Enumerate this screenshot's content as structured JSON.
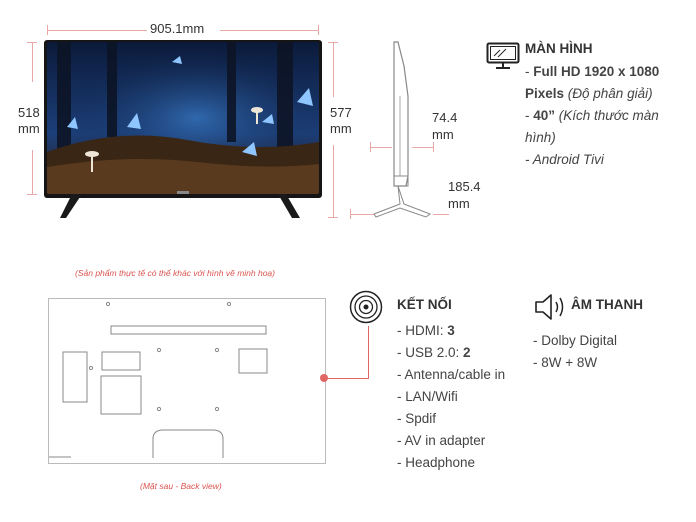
{
  "dimensions": {
    "width": "905.1mm",
    "height_panel_value": "518",
    "height_panel_unit": "mm",
    "height_total_value": "577",
    "height_total_unit": "mm",
    "depth_value": "74.4",
    "depth_unit": "mm",
    "stand_value": "185.4",
    "stand_unit": "mm"
  },
  "display_spec": {
    "title": "MÀN HÌNH",
    "resolution_prefix": "- ",
    "resolution_bold": "Full HD 1920 x 1080",
    "resolution_bold2": "Pixels",
    "resolution_note": " (Độ phân giải)",
    "size_prefix": "- ",
    "size_bold": "40”",
    "size_note": " (Kích thước màn",
    "size_note2": "hình)",
    "os": "- Android Tivi"
  },
  "notes": {
    "disclaimer": "(Sản phẩm thực tế có thể khác với hình vẽ minh hoạ)",
    "back_view": "(Mặt sau - Back view)"
  },
  "connectivity": {
    "title": "KẾT NỐI",
    "items": [
      {
        "label": "- HDMI: ",
        "value": "3"
      },
      {
        "label": "- USB 2.0: ",
        "value": "2"
      },
      {
        "label": "- Antenna/cable in",
        "value": ""
      },
      {
        "label": "- LAN/Wifi",
        "value": ""
      },
      {
        "label": "- Spdif",
        "value": ""
      },
      {
        "label": "- AV in adapter",
        "value": ""
      },
      {
        "label": "- Headphone",
        "value": ""
      }
    ]
  },
  "audio": {
    "title": "ÂM THANH",
    "items": [
      "- Dolby Digital",
      "- 8W + 8W"
    ]
  },
  "colors": {
    "accent": "#e06666",
    "dimension_line": "#e8a8a8"
  },
  "icons": {
    "display": "monitor-icon",
    "connectivity": "wireless-icon",
    "audio": "speaker-icon"
  }
}
